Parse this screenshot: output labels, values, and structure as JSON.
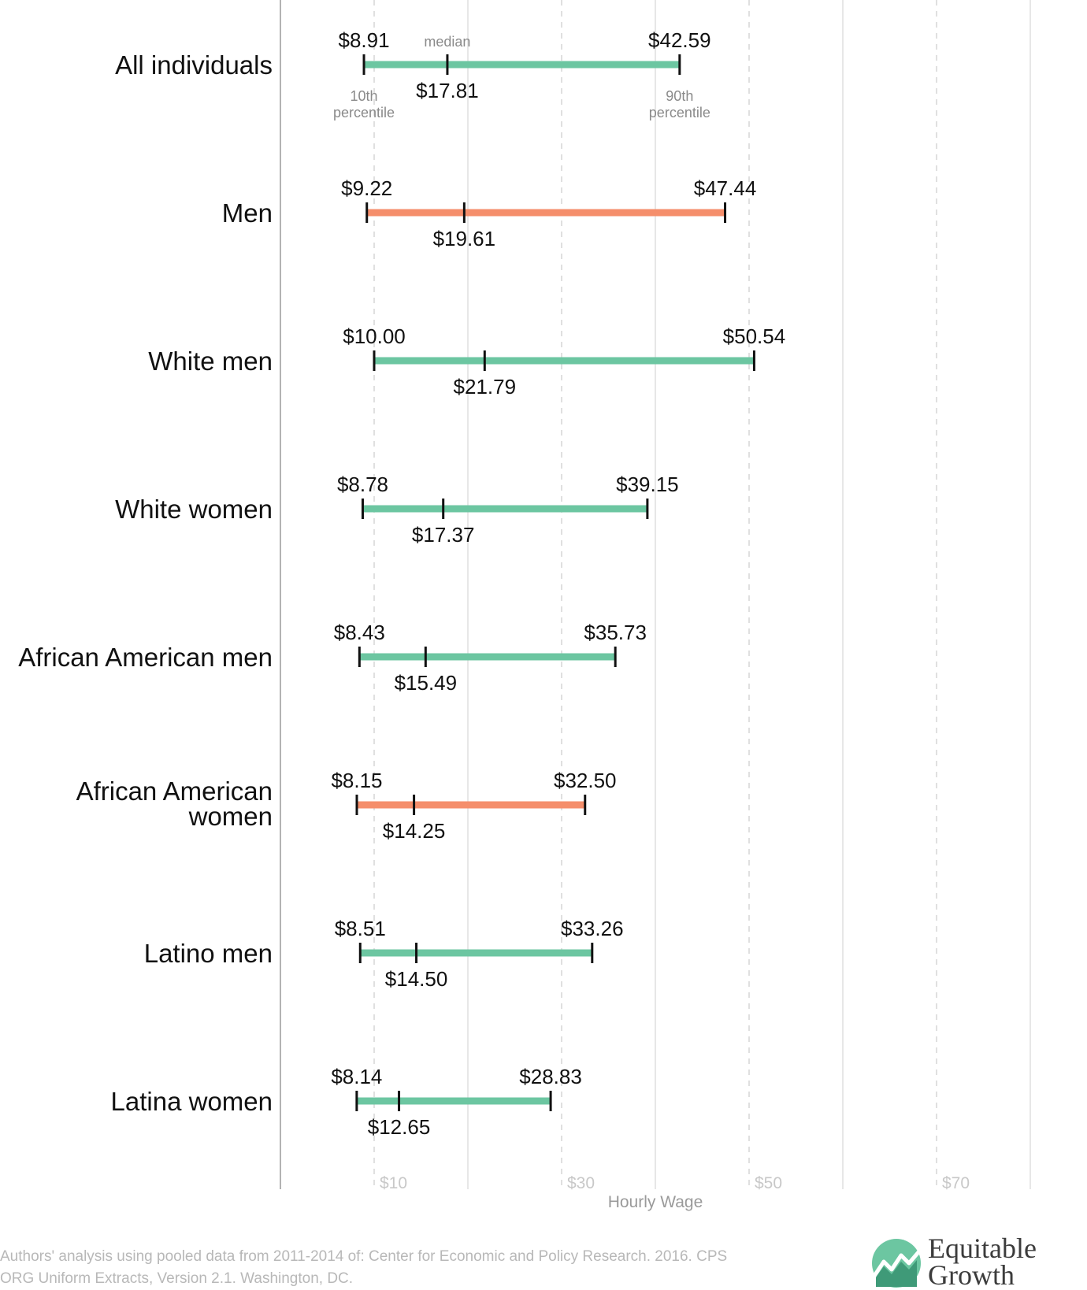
{
  "chart_data": {
    "type": "range",
    "xlabel": "Hourly Wage",
    "xlim": [
      0,
      80
    ],
    "xticks": [
      10,
      30,
      50,
      70
    ],
    "tick_labels": [
      "$10",
      "$30",
      "$50",
      "$70"
    ],
    "grid": "vertical",
    "colors": {
      "default": "#6cc6a1",
      "highlight": "#f58e6b",
      "tick": "#111111"
    },
    "annotations": {
      "median": "median",
      "p10": "10th\npercentile",
      "p90": "90th\npercentile"
    },
    "categories": [
      "All individuals",
      "Men",
      "White men",
      "White women",
      "African American men",
      "African American\nwomen",
      "Latino men",
      "Latina women"
    ],
    "p10": [
      8.91,
      9.22,
      10.0,
      8.78,
      8.43,
      8.15,
      8.51,
      8.14
    ],
    "median": [
      17.81,
      19.61,
      21.79,
      17.37,
      15.49,
      14.25,
      14.5,
      12.65
    ],
    "p90": [
      42.59,
      47.44,
      50.54,
      39.15,
      35.73,
      32.5,
      33.26,
      28.83
    ],
    "p10_labels": [
      "$8.91",
      "$9.22",
      "$10.00",
      "$8.78",
      "$8.43",
      "$8.15",
      "$8.51",
      "$8.14"
    ],
    "median_labels": [
      "$17.81",
      "$19.61",
      "$21.79",
      "$17.37",
      "$15.49",
      "$14.25",
      "$14.50",
      "$12.65"
    ],
    "p90_labels": [
      "$42.59",
      "$47.44",
      "$50.54",
      "$39.15",
      "$35.73",
      "$32.50",
      "$33.26",
      "$28.83"
    ],
    "highlight": [
      false,
      true,
      false,
      false,
      false,
      true,
      false,
      false
    ]
  },
  "source": "Authors' analysis using pooled data from 2011-2014 of: Center for Economic and Policy Research. 2016. CPS ORG Uniform Extracts, Version 2.1. Washington, DC.",
  "logo": {
    "text": "Equitable\nGrowth",
    "icon": "growth-chart-icon"
  }
}
